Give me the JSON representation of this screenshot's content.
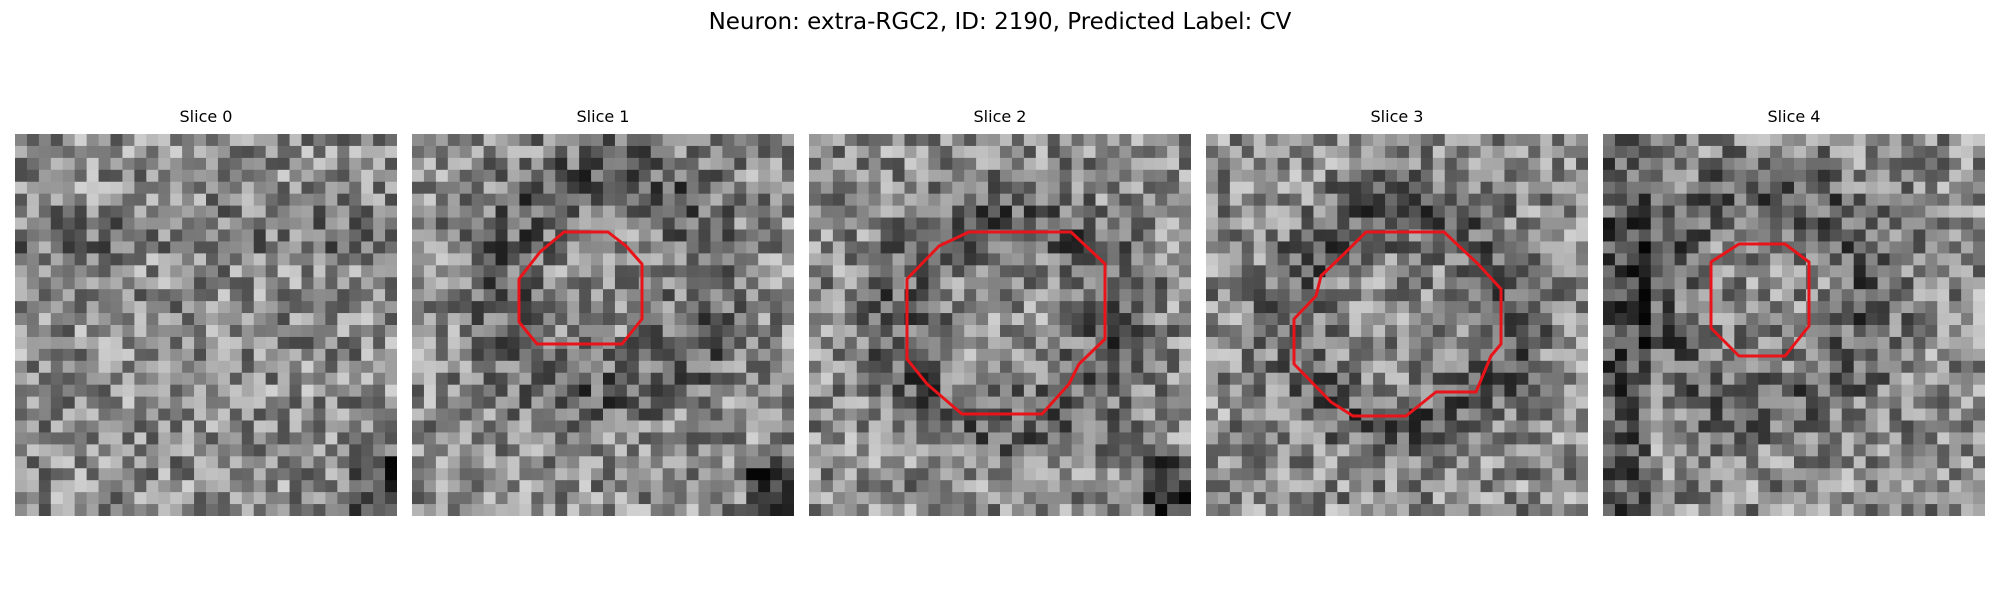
{
  "figure": {
    "title": "Neuron: extra-RGC2, ID: 2190, Predicted Label: CV"
  },
  "panels": [
    {
      "title": "Slice 0",
      "has_contour": false
    },
    {
      "title": "Slice 1",
      "has_contour": true
    },
    {
      "title": "Slice 2",
      "has_contour": true
    },
    {
      "title": "Slice 3",
      "has_contour": true
    },
    {
      "title": "Slice 4",
      "has_contour": true
    }
  ],
  "colors": {
    "contour": "#e8141a",
    "background": "#ffffff"
  }
}
